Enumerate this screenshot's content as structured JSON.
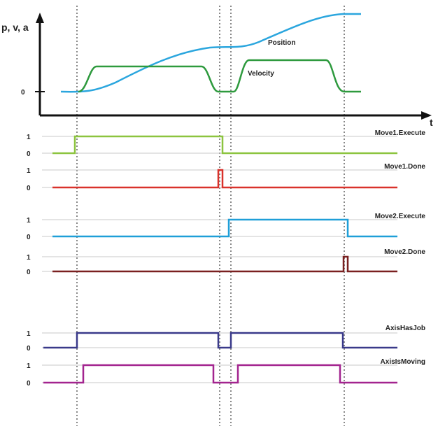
{
  "top_plot": {
    "y_axis_label": "p, v, a",
    "x_axis_label": "t",
    "zero_label": "0",
    "position_label": "Position",
    "velocity_label": "Velocity",
    "colors": {
      "position": "#2ba6de",
      "velocity": "#2e9a3e",
      "axis": "#111111"
    }
  },
  "signals": [
    {
      "name": "Move1.Execute",
      "high_label": "1",
      "low_label": "0",
      "color": "#8cc43f"
    },
    {
      "name": "Move1.Done",
      "high_label": "1",
      "low_label": "0",
      "color": "#d9322b"
    },
    {
      "name": "Move2.Execute",
      "high_label": "1",
      "low_label": "0",
      "color": "#1f9fd8"
    },
    {
      "name": "Move2.Done",
      "high_label": "1",
      "low_label": "0",
      "color": "#7a2020"
    },
    {
      "name": "AxisHasJob",
      "high_label": "1",
      "low_label": "0",
      "color": "#3a3a8a"
    },
    {
      "name": "AxisIsMoving",
      "high_label": "1",
      "low_label": "0",
      "color": "#a3248f"
    }
  ],
  "colors": {
    "grid": "#c8c8c8",
    "marker": "#888888"
  }
}
